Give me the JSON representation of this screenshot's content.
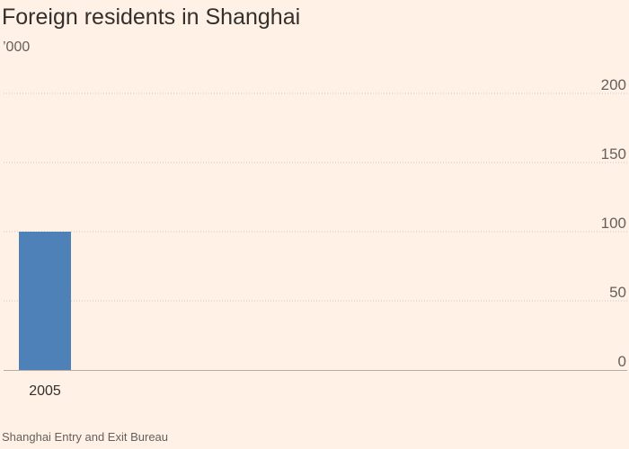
{
  "colors": {
    "background": "#fff1e5",
    "bar": "#4e81b8",
    "grid": "#cec6b9",
    "text": "#33302e",
    "muted": "#66605c",
    "axis": "#b5ada4"
  },
  "chart_data": {
    "type": "bar",
    "title": "Foreign residents in Shanghai",
    "subtitle": "’000",
    "source": "Shanghai Entry and Exit Bureau",
    "categories": [
      "2005"
    ],
    "values": [
      100
    ],
    "xlabel": "",
    "ylabel": "",
    "ylim": [
      0,
      200
    ],
    "yticks": [
      0,
      50,
      100,
      150,
      200
    ],
    "ytick_labels": [
      "0",
      "50",
      "100",
      "150",
      "200"
    ],
    "ytick_position": "right",
    "grid": true,
    "grid_style": "dotted",
    "legend": "none"
  }
}
